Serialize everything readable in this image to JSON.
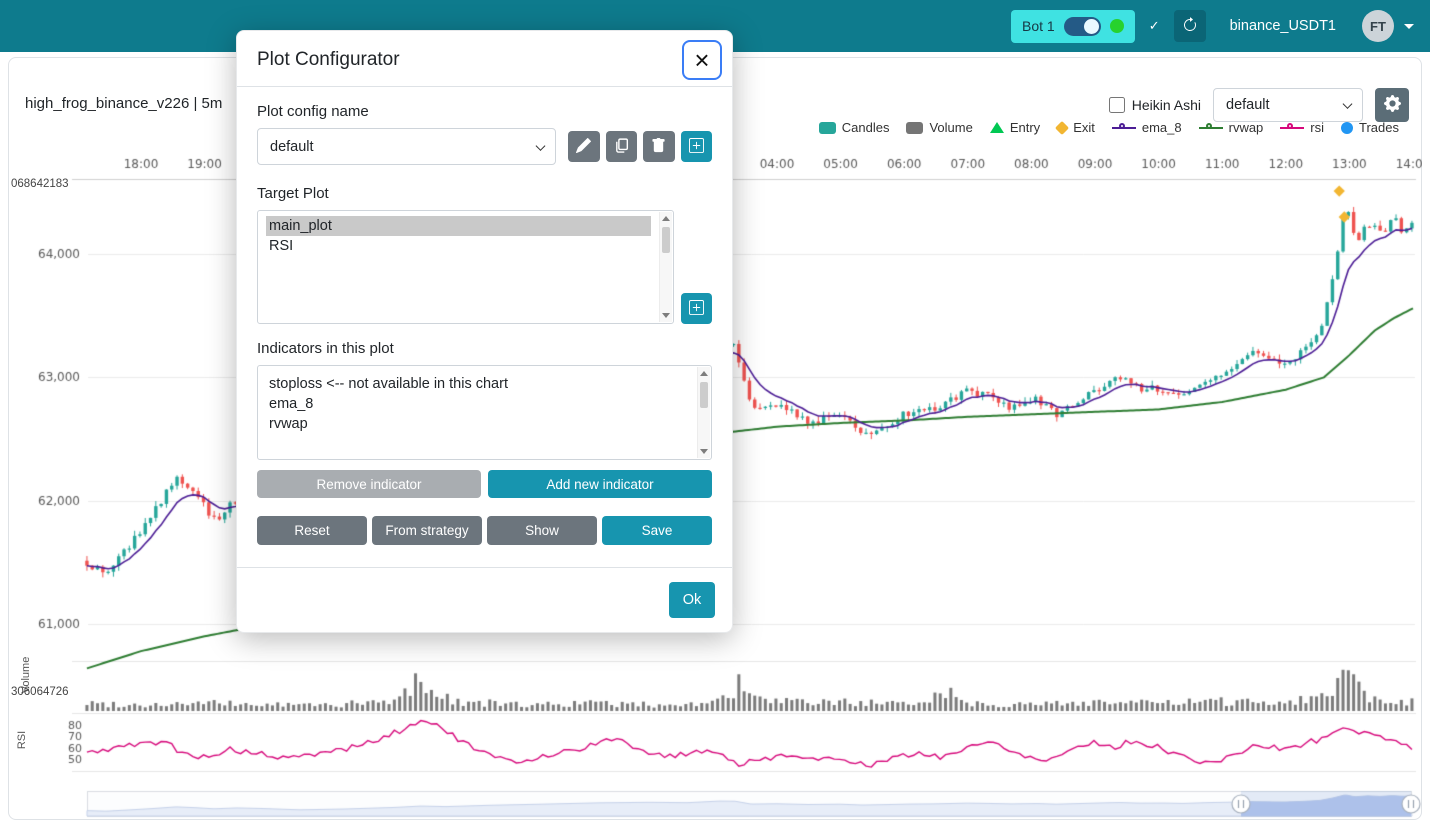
{
  "theme": {
    "navbar_bg": "#0e7b8d",
    "accent": "#1795af",
    "secondary": "#6c757d",
    "up_color": "#26a69a",
    "down_color": "#ef5350",
    "ema_color": "#4c1d95",
    "rvwap_color": "#2e7d32",
    "rsi_color": "#d6087b",
    "volume_color": "#7b7b7b",
    "exit_color": "#f2b632"
  },
  "navbar": {
    "bot_chip": {
      "label": "Bot 1"
    },
    "check_icon": "✓",
    "pair_label": "binance_USDT1",
    "avatar_label": "FT"
  },
  "chart_header": {
    "title": "high_frog_binance_v226 | 5m",
    "heikin_ashi_label": "Heikin Ashi",
    "plot_select_value": "default",
    "legend": [
      {
        "label": "Candles",
        "symbol": "rect",
        "color": "#26a69a"
      },
      {
        "label": "Volume",
        "symbol": "rect",
        "color": "#757575"
      },
      {
        "label": "Entry",
        "symbol": "triangle",
        "color": "#00c853"
      },
      {
        "label": "Exit",
        "symbol": "diamond",
        "color": "#f2b632"
      },
      {
        "label": "ema_8",
        "symbol": "line",
        "color": "#4c1d95"
      },
      {
        "label": "rvwap",
        "symbol": "line",
        "color": "#2e7d32"
      },
      {
        "label": "rsi",
        "symbol": "line",
        "color": "#d6087b"
      },
      {
        "label": "Trades",
        "symbol": "circle",
        "color": "#2196f3"
      }
    ]
  },
  "modal": {
    "title": "Plot Configurator",
    "close_label": "×",
    "config_name_label": "Plot config name",
    "config_value": "default",
    "target_plot_label": "Target Plot",
    "target_plots": [
      {
        "name": "main_plot",
        "selected": true
      },
      {
        "name": "RSI",
        "selected": false
      }
    ],
    "indicators_label": "Indicators in this plot",
    "indicators": [
      "stoploss <-- not available in this chart",
      "ema_8",
      "rvwap"
    ],
    "remove_btn": "Remove indicator",
    "add_btn": "Add new indicator",
    "reset_btn": "Reset",
    "from_strategy_btn": "From strategy",
    "show_btn": "Show",
    "save_btn": "Save",
    "ok_btn": "Ok"
  },
  "chart_data": {
    "type": "candlestick",
    "title": "high_frog_binance_v226 | 5m",
    "timeframe": "5m",
    "t_range": [
      17.15,
      38
    ],
    "slider_range": [
      60500,
      64600
    ],
    "x_ticks": [
      {
        "t": 18,
        "label": "18:00"
      },
      {
        "t": 19,
        "label": "19:00"
      },
      {
        "t": 28,
        "label": "04:00"
      },
      {
        "t": 29,
        "label": "05:00"
      },
      {
        "t": 30,
        "label": "06:00"
      },
      {
        "t": 31,
        "label": "07:00"
      },
      {
        "t": 32,
        "label": "08:00"
      },
      {
        "t": 33,
        "label": "09:00"
      },
      {
        "t": 34,
        "label": "10:00"
      },
      {
        "t": 35,
        "label": "11:00"
      },
      {
        "t": 36,
        "label": "12:00"
      },
      {
        "t": 37,
        "label": "13:00"
      },
      {
        "t": 38,
        "label": "14:00"
      }
    ],
    "y_ticks": [
      {
        "v": 64000,
        "label": "64,000"
      },
      {
        "v": 63000,
        "label": "63,000"
      },
      {
        "v": 62000,
        "label": "62,000"
      },
      {
        "v": 61000,
        "label": "61,000"
      }
    ],
    "corner_label_top": "068642183",
    "volume_axis_label": "306064726",
    "volume_title": "Volume",
    "rsi_title": "RSI",
    "rsi_ticks": [
      80,
      70,
      60,
      50
    ],
    "price_path": [
      [
        17.15,
        61500
      ],
      [
        17.45,
        61400
      ],
      [
        17.8,
        61620
      ],
      [
        18.2,
        61900
      ],
      [
        18.55,
        62200
      ],
      [
        18.85,
        62050
      ],
      [
        19.15,
        61840
      ],
      [
        19.5,
        62000
      ],
      [
        19.9,
        61900
      ],
      [
        20.5,
        61650
      ],
      [
        21.2,
        61800
      ],
      [
        22.0,
        62100
      ],
      [
        22.4,
        62350
      ],
      [
        22.8,
        62250
      ],
      [
        23.5,
        62500
      ],
      [
        24.3,
        62700
      ],
      [
        25.2,
        62950
      ],
      [
        26.0,
        63050
      ],
      [
        26.6,
        62980
      ],
      [
        27.1,
        63280
      ],
      [
        27.35,
        63250
      ],
      [
        27.6,
        62720
      ],
      [
        28.0,
        62780
      ],
      [
        28.5,
        62640
      ],
      [
        29.0,
        62700
      ],
      [
        29.35,
        62540
      ],
      [
        29.7,
        62620
      ],
      [
        30.1,
        62720
      ],
      [
        30.5,
        62760
      ],
      [
        31.0,
        62900
      ],
      [
        31.35,
        62840
      ],
      [
        31.7,
        62750
      ],
      [
        32.1,
        62820
      ],
      [
        32.4,
        62700
      ],
      [
        32.8,
        62830
      ],
      [
        33.1,
        62930
      ],
      [
        33.4,
        63010
      ],
      [
        33.7,
        62900
      ],
      [
        34.1,
        62910
      ],
      [
        34.4,
        62840
      ],
      [
        34.8,
        63000
      ],
      [
        35.1,
        63060
      ],
      [
        35.4,
        63200
      ],
      [
        35.7,
        63140
      ],
      [
        36.0,
        63110
      ],
      [
        36.3,
        63230
      ],
      [
        36.55,
        63400
      ],
      [
        36.75,
        63850
      ],
      [
        36.95,
        64450
      ],
      [
        37.1,
        64080
      ],
      [
        37.3,
        64260
      ],
      [
        37.5,
        64150
      ],
      [
        37.7,
        64300
      ],
      [
        37.85,
        64180
      ],
      [
        38.0,
        64240
      ]
    ],
    "rvwap_path": [
      [
        17.15,
        60640
      ],
      [
        18.0,
        60780
      ],
      [
        19.0,
        60900
      ],
      [
        20.0,
        61000
      ],
      [
        20.8,
        61050
      ],
      [
        22.0,
        61400
      ],
      [
        23.0,
        61800
      ],
      [
        24.0,
        62100
      ],
      [
        25.0,
        62300
      ],
      [
        26.0,
        62450
      ],
      [
        27.0,
        62540
      ],
      [
        28.0,
        62600
      ],
      [
        29.0,
        62630
      ],
      [
        30.0,
        62650
      ],
      [
        31.0,
        62680
      ],
      [
        32.0,
        62700
      ],
      [
        33.0,
        62720
      ],
      [
        34.0,
        62740
      ],
      [
        35.0,
        62800
      ],
      [
        36.0,
        62900
      ],
      [
        36.6,
        63000
      ],
      [
        37.0,
        63180
      ],
      [
        37.4,
        63380
      ],
      [
        37.7,
        63480
      ],
      [
        38.0,
        63560
      ]
    ],
    "rsi_path": [
      [
        17.15,
        55
      ],
      [
        17.6,
        60
      ],
      [
        18.0,
        63
      ],
      [
        18.4,
        66
      ],
      [
        18.6,
        55
      ],
      [
        19.0,
        52
      ],
      [
        19.4,
        58
      ],
      [
        19.8,
        55
      ],
      [
        20.3,
        50
      ],
      [
        20.8,
        55
      ],
      [
        21.3,
        60
      ],
      [
        21.8,
        68
      ],
      [
        22.2,
        78
      ],
      [
        22.5,
        85
      ],
      [
        22.8,
        74
      ],
      [
        23.2,
        60
      ],
      [
        23.6,
        50
      ],
      [
        24.0,
        48
      ],
      [
        24.5,
        55
      ],
      [
        25.0,
        60
      ],
      [
        25.4,
        68
      ],
      [
        25.8,
        60
      ],
      [
        26.2,
        52
      ],
      [
        26.6,
        55
      ],
      [
        27.0,
        58
      ],
      [
        27.4,
        45
      ],
      [
        27.8,
        50
      ],
      [
        28.2,
        55
      ],
      [
        28.6,
        48
      ],
      [
        29.0,
        52
      ],
      [
        29.4,
        44
      ],
      [
        29.8,
        50
      ],
      [
        30.2,
        55
      ],
      [
        30.6,
        52
      ],
      [
        31.0,
        60
      ],
      [
        31.4,
        65
      ],
      [
        31.8,
        55
      ],
      [
        32.2,
        48
      ],
      [
        32.6,
        58
      ],
      [
        33.0,
        65
      ],
      [
        33.3,
        60
      ],
      [
        33.6,
        66
      ],
      [
        34.0,
        60
      ],
      [
        34.4,
        52
      ],
      [
        34.8,
        45
      ],
      [
        35.2,
        55
      ],
      [
        35.6,
        62
      ],
      [
        36.0,
        58
      ],
      [
        36.3,
        64
      ],
      [
        36.6,
        68
      ],
      [
        36.9,
        78
      ],
      [
        37.1,
        72
      ],
      [
        37.3,
        76
      ],
      [
        37.5,
        68
      ],
      [
        37.7,
        64
      ],
      [
        37.9,
        62
      ],
      [
        38.0,
        60
      ]
    ],
    "volume_env": [
      [
        17.15,
        0.25
      ],
      [
        18,
        0.2
      ],
      [
        19,
        0.25
      ],
      [
        20,
        0.2
      ],
      [
        21,
        0.2
      ],
      [
        22,
        0.3
      ],
      [
        22.35,
        0.95
      ],
      [
        22.6,
        0.55
      ],
      [
        23,
        0.3
      ],
      [
        24,
        0.2
      ],
      [
        25,
        0.25
      ],
      [
        26,
        0.2
      ],
      [
        27,
        0.25
      ],
      [
        27.4,
        0.8
      ],
      [
        27.7,
        0.35
      ],
      [
        28.5,
        0.25
      ],
      [
        29,
        0.3
      ],
      [
        29.5,
        0.25
      ],
      [
        30,
        0.2
      ],
      [
        30.7,
        0.65
      ],
      [
        31,
        0.25
      ],
      [
        32,
        0.2
      ],
      [
        33,
        0.3
      ],
      [
        34,
        0.25
      ],
      [
        35,
        0.3
      ],
      [
        36,
        0.3
      ],
      [
        36.6,
        0.5
      ],
      [
        36.9,
        1.0
      ],
      [
        37.1,
        0.9
      ],
      [
        37.3,
        0.5
      ],
      [
        37.6,
        0.35
      ],
      [
        38,
        0.3
      ]
    ],
    "exit_points": [
      [
        36.84,
        64510
      ],
      [
        36.92,
        64300
      ]
    ],
    "zoom_window": [
      1231,
      1401
    ]
  }
}
